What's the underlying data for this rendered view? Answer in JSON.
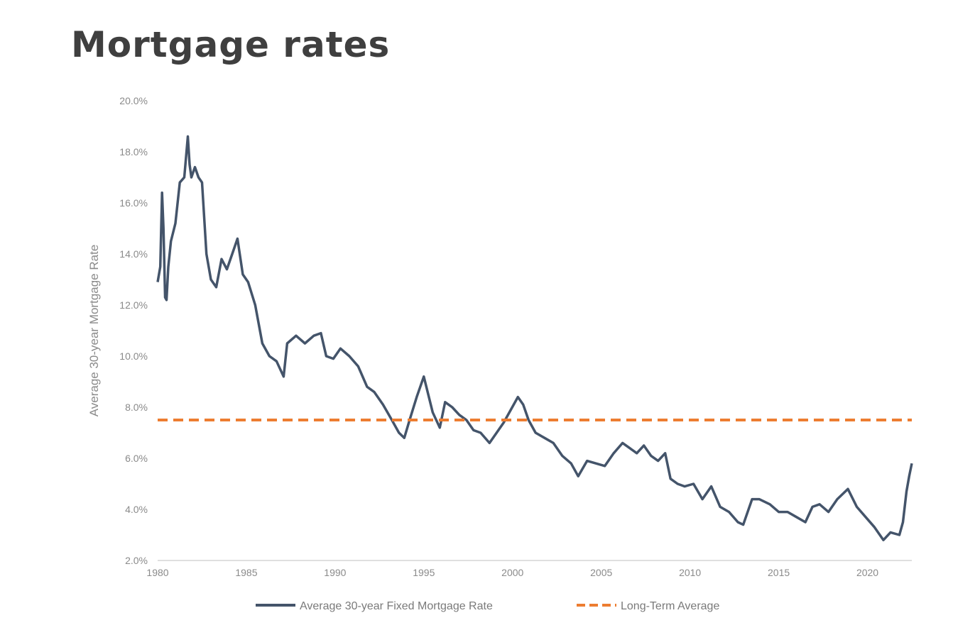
{
  "title": "Mortgage rates",
  "colors": {
    "series": "#44546a",
    "average": "#ed7d31",
    "axis": "#bfbfbf",
    "text": "#8a8a8a"
  },
  "chart_data": {
    "type": "line",
    "title": "Mortgage rates",
    "xlabel": "",
    "ylabel": "Average 30-year Mortgage Rate",
    "xlim": [
      1980,
      2022.5
    ],
    "ylim": [
      2.0,
      20.0
    ],
    "x_ticks": [
      1980,
      1985,
      1990,
      1995,
      2000,
      2005,
      2010,
      2015,
      2020
    ],
    "y_ticks": [
      2.0,
      4.0,
      6.0,
      8.0,
      10.0,
      12.0,
      14.0,
      16.0,
      18.0,
      20.0
    ],
    "y_tick_labels": [
      "2.0%",
      "4.0%",
      "6.0%",
      "8.0%",
      "10.0%",
      "12.0%",
      "14.0%",
      "16.0%",
      "18.0%",
      "20.0%"
    ],
    "x_tick_labels": [
      "1980",
      "1985",
      "1990",
      "1995",
      "2000",
      "2005",
      "2010",
      "2015",
      "2020"
    ],
    "grid": false,
    "legend_position": "bottom",
    "series": [
      {
        "name": "Average 30-year Fixed Mortgage Rate",
        "style": "solid",
        "x": [
          1980.0,
          1980.15,
          1980.25,
          1980.33,
          1980.42,
          1980.5,
          1980.6,
          1980.75,
          1981.0,
          1981.25,
          1981.5,
          1981.7,
          1981.8,
          1981.9,
          1982.1,
          1982.3,
          1982.5,
          1982.75,
          1983.0,
          1983.3,
          1983.6,
          1983.9,
          1984.2,
          1984.5,
          1984.8,
          1985.1,
          1985.5,
          1985.9,
          1986.3,
          1986.7,
          1987.1,
          1987.3,
          1987.8,
          1988.3,
          1988.8,
          1989.2,
          1989.5,
          1989.9,
          1990.3,
          1990.8,
          1991.3,
          1991.8,
          1992.2,
          1992.7,
          1993.2,
          1993.6,
          1993.9,
          1994.2,
          1994.6,
          1995.0,
          1995.5,
          1995.9,
          1996.2,
          1996.6,
          1997.0,
          1997.4,
          1997.8,
          1998.2,
          1998.7,
          1999.0,
          1999.5,
          1999.9,
          2000.3,
          2000.6,
          2000.9,
          2001.3,
          2001.8,
          2002.3,
          2002.8,
          2003.3,
          2003.7,
          2004.2,
          2004.7,
          2005.2,
          2005.7,
          2006.2,
          2006.6,
          2007.0,
          2007.4,
          2007.8,
          2008.2,
          2008.6,
          2008.9,
          2009.3,
          2009.7,
          2010.2,
          2010.7,
          2011.2,
          2011.7,
          2012.2,
          2012.7,
          2013.0,
          2013.5,
          2013.9,
          2014.5,
          2015.0,
          2015.5,
          2016.0,
          2016.5,
          2016.9,
          2017.3,
          2017.8,
          2018.3,
          2018.9,
          2019.4,
          2019.9,
          2020.4,
          2020.9,
          2021.3,
          2021.8,
          2022.0,
          2022.2,
          2022.35,
          2022.5
        ],
        "values": [
          12.9,
          13.5,
          16.4,
          15.0,
          12.3,
          12.2,
          13.5,
          14.5,
          15.2,
          16.8,
          17.0,
          18.6,
          17.5,
          17.0,
          17.4,
          17.0,
          16.8,
          14.0,
          13.0,
          12.7,
          13.8,
          13.4,
          14.0,
          14.6,
          13.2,
          12.9,
          12.0,
          10.5,
          10.0,
          9.8,
          9.2,
          10.5,
          10.8,
          10.5,
          10.8,
          10.9,
          10.0,
          9.9,
          10.3,
          10.0,
          9.6,
          8.8,
          8.6,
          8.1,
          7.5,
          7.0,
          6.8,
          7.5,
          8.4,
          9.2,
          7.8,
          7.2,
          8.2,
          8.0,
          7.7,
          7.5,
          7.1,
          7.0,
          6.6,
          6.9,
          7.4,
          7.9,
          8.4,
          8.1,
          7.5,
          7.0,
          6.8,
          6.6,
          6.1,
          5.8,
          5.3,
          5.9,
          5.8,
          5.7,
          6.2,
          6.6,
          6.4,
          6.2,
          6.5,
          6.1,
          5.9,
          6.2,
          5.2,
          5.0,
          4.9,
          5.0,
          4.4,
          4.9,
          4.1,
          3.9,
          3.5,
          3.4,
          4.4,
          4.4,
          4.2,
          3.9,
          3.9,
          3.7,
          3.5,
          4.1,
          4.2,
          3.9,
          4.4,
          4.8,
          4.1,
          3.7,
          3.3,
          2.8,
          3.1,
          3.0,
          3.5,
          4.7,
          5.3,
          5.8
        ]
      },
      {
        "name": "Long-Term Average",
        "style": "dashed",
        "x": [
          1980,
          2022.5
        ],
        "values": [
          7.5,
          7.5
        ]
      }
    ]
  }
}
